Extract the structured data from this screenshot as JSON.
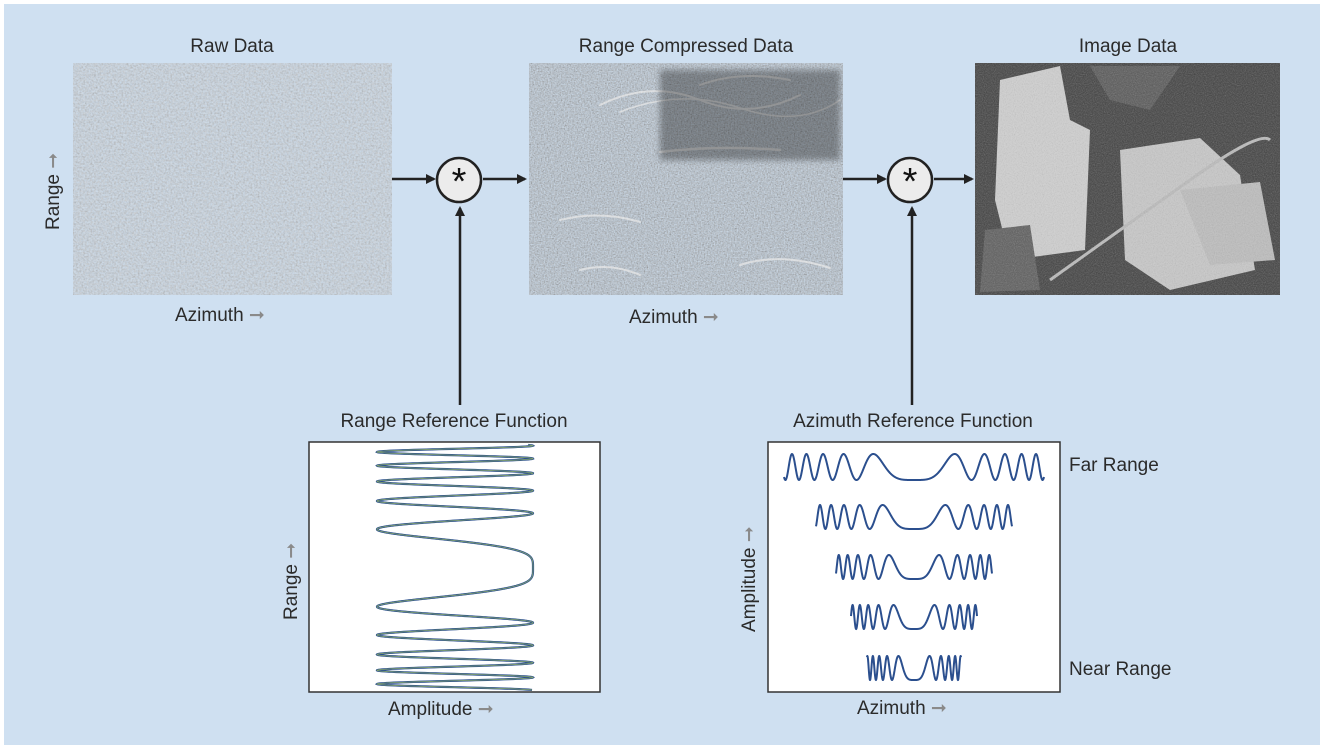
{
  "colors": {
    "background": "#cfe0f1",
    "arrow": "#222222",
    "axis_arrow": "#8a8a8a",
    "operator_fill": "#ececec",
    "chirp_stroke": "#2b4f8e",
    "chirp_highlight": "#8fae6a",
    "box_border": "#333333"
  },
  "stages": {
    "raw": {
      "title": "Raw Data",
      "xlabel": "Azimuth",
      "ylabel": "Range"
    },
    "range_compressed": {
      "title": "Range Compressed Data",
      "xlabel": "Azimuth"
    },
    "image": {
      "title": "Image Data"
    }
  },
  "operators": [
    {
      "symbol": "*"
    },
    {
      "symbol": "*"
    }
  ],
  "range_reference": {
    "title": "Range Reference Function",
    "xlabel": "Amplitude",
    "ylabel": "Range"
  },
  "azimuth_reference": {
    "title": "Azimuth Reference Function",
    "xlabel": "Azimuth",
    "ylabel": "Amplitude",
    "row_labels": {
      "top": "Far Range",
      "bottom": "Near Range"
    },
    "rows": 5
  },
  "axis_arrow_glyphs": {
    "right": "➞",
    "up": "➞"
  }
}
